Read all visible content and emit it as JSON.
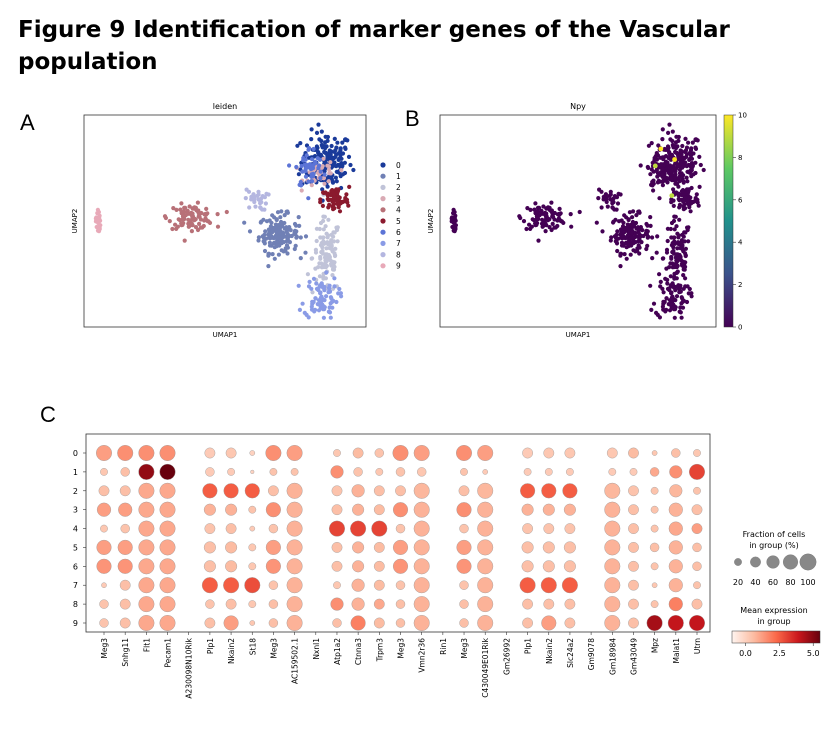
{
  "figure": {
    "title": "Figure 9 Identification of marker genes of the Vascular population",
    "panel_labels": [
      "A",
      "B",
      "C"
    ]
  },
  "chart_data": [
    {
      "type": "scatter",
      "title": "leiden",
      "xlabel": "UMAP1",
      "ylabel": "UMAP2",
      "legend_position": "right",
      "legend": [
        "0",
        "1",
        "2",
        "3",
        "4",
        "5",
        "6",
        "7",
        "8",
        "9"
      ],
      "colors": [
        "#1a3a9a",
        "#7080b5",
        "#c0c3d8",
        "#d9aab4",
        "#b87178",
        "#8b1a2e",
        "#5c74d6",
        "#8a9be6",
        "#b4b6e0",
        "#e8a9b8"
      ],
      "clusters": [
        {
          "name": "0",
          "cx": 0.86,
          "cy": 0.78,
          "sx": 0.045,
          "sy": 0.07,
          "n": 170
        },
        {
          "name": "1",
          "cx": 0.69,
          "cy": 0.44,
          "sx": 0.035,
          "sy": 0.045,
          "n": 150
        },
        {
          "name": "2",
          "cx": 0.86,
          "cy": 0.33,
          "sx": 0.025,
          "sy": 0.09,
          "n": 110
        },
        {
          "name": "3",
          "cx": 0.84,
          "cy": 0.72,
          "sx": 0.03,
          "sy": 0.03,
          "n": 40
        },
        {
          "name": "4",
          "cx": 0.38,
          "cy": 0.52,
          "sx": 0.04,
          "sy": 0.028,
          "n": 100
        },
        {
          "name": "5",
          "cx": 0.89,
          "cy": 0.6,
          "sx": 0.025,
          "sy": 0.03,
          "n": 70
        },
        {
          "name": "6",
          "cx": 0.8,
          "cy": 0.75,
          "sx": 0.025,
          "sy": 0.05,
          "n": 50
        },
        {
          "name": "7",
          "cx": 0.84,
          "cy": 0.14,
          "sx": 0.03,
          "sy": 0.05,
          "n": 80
        },
        {
          "name": "8",
          "cx": 0.61,
          "cy": 0.6,
          "sx": 0.02,
          "sy": 0.025,
          "n": 30
        },
        {
          "name": "9",
          "cx": 0.05,
          "cy": 0.5,
          "sx": 0.004,
          "sy": 0.03,
          "n": 25
        }
      ]
    },
    {
      "type": "scatter",
      "title": "Npy",
      "xlabel": "UMAP1",
      "ylabel": "UMAP2",
      "colorbar_ticks": [
        0,
        2,
        4,
        6,
        8,
        10
      ],
      "colorbar_range": [
        0,
        10
      ],
      "colormap": [
        "#440154",
        "#3b528b",
        "#21918c",
        "#5ec962",
        "#fde725"
      ],
      "expression_highlights": [
        {
          "x": 0.8,
          "y": 0.84,
          "value": 10
        },
        {
          "x": 0.85,
          "y": 0.79,
          "value": 10
        },
        {
          "x": 0.78,
          "y": 0.76,
          "value": 9
        },
        {
          "x": 0.84,
          "y": 0.62,
          "value": 9
        }
      ]
    },
    {
      "type": "dotplot",
      "groups": [
        "0",
        "1",
        "2",
        "3",
        "4",
        "5",
        "6",
        "7",
        "8",
        "9"
      ],
      "genes": [
        "Meg3",
        "Snhg11",
        "Flt1",
        "Pecam1",
        "A230098N10Rik",
        "Plp1",
        "Nkain2",
        "St18",
        "Meg3",
        "AC159502.1",
        "Nxnl1",
        "Atp1a2",
        "Ctnna3",
        "Trpm3",
        "Meg3",
        "Vmn2r36",
        "Rin1",
        "Meg3",
        "C430049E01Rik",
        "Gm26992",
        "Plp1",
        "Nkain2",
        "Slc24a2",
        "Gm9078",
        "Gm18984",
        "Gm43049",
        "Mpz",
        "Malat1",
        "Utrn"
      ],
      "size_legend_title": "Fraction of cells in group (%)",
      "size_ticks": [
        20,
        40,
        60,
        80,
        100
      ],
      "color_legend_title": "Mean expression in group",
      "color_ticks": [
        0.0,
        2.5,
        5.0
      ],
      "color_range": [
        -1,
        5.5
      ],
      "fractions": [
        [
          90,
          90,
          90,
          90,
          0,
          40,
          40,
          10,
          90,
          90,
          0,
          20,
          40,
          30,
          90,
          90,
          0,
          90,
          90,
          0,
          40,
          40,
          40,
          0,
          40,
          40,
          10,
          30,
          20
        ],
        [
          20,
          30,
          90,
          90,
          0,
          30,
          20,
          5,
          20,
          20,
          0,
          60,
          30,
          20,
          30,
          30,
          0,
          20,
          10,
          0,
          20,
          20,
          20,
          0,
          20,
          20,
          30,
          60,
          90
        ],
        [
          40,
          40,
          90,
          90,
          0,
          80,
          80,
          80,
          40,
          90,
          0,
          40,
          60,
          40,
          40,
          90,
          0,
          40,
          90,
          0,
          80,
          80,
          80,
          0,
          90,
          40,
          20,
          60,
          20
        ],
        [
          70,
          70,
          90,
          90,
          0,
          50,
          50,
          20,
          80,
          90,
          0,
          40,
          50,
          40,
          80,
          90,
          0,
          80,
          90,
          0,
          50,
          50,
          50,
          0,
          90,
          40,
          20,
          70,
          40
        ],
        [
          20,
          30,
          90,
          90,
          0,
          40,
          40,
          10,
          30,
          90,
          0,
          90,
          90,
          90,
          30,
          90,
          0,
          30,
          90,
          0,
          40,
          40,
          40,
          0,
          90,
          40,
          20,
          70,
          40
        ],
        [
          80,
          80,
          90,
          90,
          0,
          50,
          50,
          20,
          80,
          90,
          0,
          40,
          50,
          40,
          80,
          90,
          0,
          80,
          90,
          0,
          50,
          50,
          50,
          0,
          90,
          40,
          30,
          70,
          30
        ],
        [
          80,
          80,
          90,
          90,
          0,
          50,
          50,
          20,
          80,
          90,
          0,
          40,
          50,
          40,
          80,
          90,
          0,
          80,
          90,
          0,
          50,
          50,
          50,
          0,
          90,
          40,
          20,
          70,
          30
        ],
        [
          10,
          40,
          90,
          90,
          0,
          90,
          90,
          90,
          30,
          90,
          0,
          20,
          60,
          40,
          30,
          90,
          0,
          30,
          90,
          0,
          90,
          90,
          90,
          0,
          90,
          40,
          10,
          70,
          20
        ],
        [
          30,
          40,
          90,
          90,
          0,
          30,
          40,
          20,
          30,
          90,
          0,
          60,
          60,
          40,
          30,
          90,
          0,
          30,
          90,
          0,
          40,
          40,
          40,
          0,
          90,
          40,
          20,
          70,
          40
        ],
        [
          30,
          40,
          90,
          90,
          0,
          40,
          80,
          10,
          30,
          90,
          0,
          30,
          80,
          40,
          30,
          90,
          0,
          30,
          90,
          0,
          40,
          80,
          40,
          0,
          90,
          40,
          90,
          90,
          90
        ]
      ],
      "expression": [
        [
          1.2,
          1.5,
          1.5,
          1.5,
          0,
          0.2,
          0.3,
          0,
          1.5,
          1.2,
          0,
          0.3,
          0.6,
          0.4,
          1.5,
          1.2,
          0,
          1.5,
          1.2,
          0,
          0.2,
          0.3,
          0.3,
          0,
          0.3,
          0.6,
          0.3,
          0.5,
          0.3
        ],
        [
          0.3,
          0.5,
          4.8,
          5.5,
          0,
          0.2,
          0.2,
          0,
          0.4,
          0.4,
          0,
          1.5,
          0.4,
          0.3,
          0.4,
          0.3,
          0,
          0.4,
          0.2,
          0,
          0.2,
          0.2,
          0.2,
          0,
          0.2,
          0.2,
          1.0,
          1.5,
          3.0
        ],
        [
          0.5,
          0.5,
          1.0,
          1.0,
          0,
          2.5,
          2.5,
          2.5,
          0.5,
          0.8,
          0,
          0.4,
          0.8,
          0.5,
          0.5,
          0.7,
          0,
          0.5,
          0.7,
          0,
          2.5,
          2.5,
          2.5,
          0,
          0.7,
          0.4,
          0.4,
          0.7,
          0.4
        ],
        [
          1.2,
          1.2,
          1.0,
          1.0,
          0,
          0.8,
          0.8,
          0.4,
          1.5,
          0.8,
          0,
          0.5,
          0.8,
          0.6,
          1.5,
          0.8,
          0,
          1.5,
          0.8,
          0,
          0.8,
          0.8,
          0.8,
          0,
          0.8,
          0.5,
          0.4,
          0.8,
          0.5
        ],
        [
          0.3,
          0.4,
          1.0,
          1.0,
          0,
          0.4,
          0.5,
          0.2,
          0.4,
          0.8,
          0,
          3.0,
          3.0,
          3.0,
          0.4,
          0.8,
          0,
          0.4,
          0.8,
          0,
          0.4,
          0.4,
          0.4,
          0,
          0.8,
          0.5,
          0.4,
          1.0,
          1.2
        ],
        [
          1.2,
          1.2,
          1.0,
          1.0,
          0,
          0.5,
          0.6,
          0.3,
          1.2,
          0.8,
          0,
          0.5,
          0.8,
          0.6,
          1.2,
          0.8,
          0,
          1.2,
          0.8,
          0,
          0.5,
          0.5,
          0.5,
          0,
          0.8,
          0.5,
          0.5,
          0.8,
          0.5
        ],
        [
          1.4,
          1.4,
          1.0,
          1.0,
          0,
          0.5,
          0.6,
          0.3,
          1.4,
          0.8,
          0,
          0.5,
          0.8,
          0.6,
          1.4,
          0.8,
          0,
          1.4,
          0.8,
          0,
          0.5,
          0.5,
          0.5,
          0,
          0.8,
          0.5,
          0.4,
          0.8,
          0.5
        ],
        [
          0.2,
          0.5,
          1.0,
          1.0,
          0,
          2.5,
          2.5,
          2.8,
          0.4,
          0.8,
          0,
          0.3,
          0.8,
          0.6,
          0.4,
          0.8,
          0,
          0.4,
          0.8,
          0,
          2.5,
          2.5,
          2.5,
          0,
          0.8,
          0.5,
          0.3,
          0.8,
          0.4
        ],
        [
          0.4,
          0.5,
          1.0,
          1.0,
          0,
          0.4,
          0.5,
          0.3,
          0.5,
          0.8,
          0,
          1.5,
          0.8,
          1.0,
          0.5,
          0.8,
          0,
          0.5,
          0.8,
          0,
          0.5,
          0.5,
          0.5,
          0,
          0.8,
          0.5,
          0.4,
          1.8,
          0.5
        ],
        [
          0.4,
          0.5,
          1.0,
          1.0,
          0,
          0.5,
          1.2,
          0.3,
          0.5,
          0.8,
          0,
          0.5,
          1.8,
          0.6,
          0.5,
          0.8,
          0,
          0.5,
          0.8,
          0,
          0.5,
          1.2,
          0.5,
          0,
          0.8,
          0.5,
          4.5,
          4.0,
          4.0
        ]
      ]
    }
  ]
}
